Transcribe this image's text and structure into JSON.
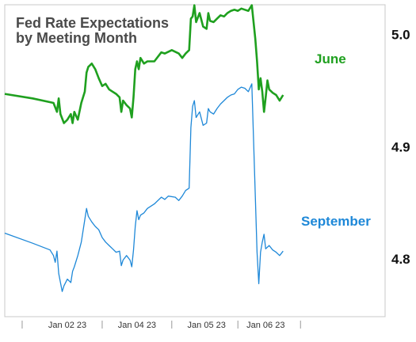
{
  "chart_data": {
    "type": "line",
    "title": "Fed Rate Expectations",
    "subtitle": "by Meeting Month",
    "xlabel": "",
    "ylabel": "",
    "y_ticks": [
      {
        "label": "4.8",
        "value": 4.8
      },
      {
        "label": "4.9",
        "value": 4.9
      },
      {
        "label": "5.0",
        "value": 5.0
      }
    ],
    "x_ticks": [
      {
        "label": "Jan 02 23",
        "t": 13
      },
      {
        "label": "Jan 04 23",
        "t": 33
      },
      {
        "label": "Jan 05 23",
        "t": 53
      },
      {
        "label": "Jan 06 23",
        "t": 70
      }
    ],
    "x_range": [
      -5,
      87
    ],
    "ylim": [
      4.75,
      5.025
    ],
    "grid": false,
    "series": [
      {
        "name": "June",
        "color": "#1fa01f",
        "points": [
          [
            -5,
            4.947
          ],
          [
            3,
            4.943
          ],
          [
            9,
            4.939
          ],
          [
            10,
            4.931
          ],
          [
            10.5,
            4.943
          ],
          [
            11,
            4.929
          ],
          [
            12,
            4.921
          ],
          [
            13,
            4.924
          ],
          [
            14,
            4.929
          ],
          [
            14.5,
            4.921
          ],
          [
            15,
            4.931
          ],
          [
            16,
            4.924
          ],
          [
            17,
            4.939
          ],
          [
            18,
            4.949
          ],
          [
            18.5,
            4.966
          ],
          [
            19,
            4.971
          ],
          [
            20,
            4.974
          ],
          [
            21,
            4.969
          ],
          [
            22,
            4.961
          ],
          [
            23,
            4.954
          ],
          [
            24,
            4.956
          ],
          [
            25,
            4.951
          ],
          [
            26,
            4.949
          ],
          [
            27,
            4.947
          ],
          [
            28,
            4.944
          ],
          [
            28.5,
            4.931
          ],
          [
            29,
            4.941
          ],
          [
            30,
            4.937
          ],
          [
            31,
            4.934
          ],
          [
            31.5,
            4.926
          ],
          [
            32,
            4.944
          ],
          [
            32.5,
            4.969
          ],
          [
            33,
            4.976
          ],
          [
            33.5,
            4.969
          ],
          [
            34,
            4.979
          ],
          [
            35,
            4.974
          ],
          [
            36,
            4.976
          ],
          [
            38,
            4.976
          ],
          [
            40,
            4.984
          ],
          [
            41,
            4.983
          ],
          [
            43,
            4.986
          ],
          [
            45,
            4.983
          ],
          [
            46,
            4.979
          ],
          [
            47,
            4.983
          ],
          [
            48,
            4.986
          ],
          [
            48.5,
            5.014
          ],
          [
            49,
            5.016
          ],
          [
            49.5,
            5.026
          ],
          [
            50,
            5.011
          ],
          [
            51,
            5.019
          ],
          [
            52,
            5.007
          ],
          [
            53,
            5.005
          ],
          [
            53.5,
            5.019
          ],
          [
            54,
            5.012
          ],
          [
            55,
            5.011
          ],
          [
            56,
            5.014
          ],
          [
            57,
            5.017
          ],
          [
            58,
            5.016
          ],
          [
            59,
            5.019
          ],
          [
            60,
            5.021
          ],
          [
            61,
            5.022
          ],
          [
            62,
            5.021
          ],
          [
            63,
            5.023
          ],
          [
            64,
            5.022
          ],
          [
            65,
            5.021
          ],
          [
            66,
            5.026
          ],
          [
            66.5,
            5.011
          ],
          [
            67,
            4.996
          ],
          [
            67.5,
            4.976
          ],
          [
            68,
            4.951
          ],
          [
            68.5,
            4.961
          ],
          [
            69,
            4.949
          ],
          [
            69.5,
            4.931
          ],
          [
            70,
            4.944
          ],
          [
            70.5,
            4.959
          ],
          [
            71,
            4.951
          ],
          [
            72,
            4.948
          ],
          [
            73,
            4.946
          ],
          [
            74,
            4.941
          ],
          [
            75,
            4.946
          ]
        ]
      },
      {
        "name": "September",
        "color": "#1e88d8",
        "points": [
          [
            -5,
            4.823
          ],
          [
            3,
            4.814
          ],
          [
            8,
            4.808
          ],
          [
            9,
            4.803
          ],
          [
            9.5,
            4.797
          ],
          [
            10,
            4.807
          ],
          [
            10.5,
            4.787
          ],
          [
            11,
            4.779
          ],
          [
            11.5,
            4.771
          ],
          [
            12,
            4.776
          ],
          [
            13,
            4.782
          ],
          [
            14,
            4.779
          ],
          [
            14.5,
            4.789
          ],
          [
            15,
            4.793
          ],
          [
            16,
            4.803
          ],
          [
            17,
            4.815
          ],
          [
            18,
            4.835
          ],
          [
            18.5,
            4.845
          ],
          [
            19,
            4.838
          ],
          [
            20,
            4.833
          ],
          [
            21,
            4.829
          ],
          [
            22,
            4.826
          ],
          [
            23,
            4.819
          ],
          [
            24,
            4.815
          ],
          [
            25,
            4.812
          ],
          [
            26,
            4.809
          ],
          [
            27,
            4.806
          ],
          [
            28,
            4.807
          ],
          [
            28.5,
            4.794
          ],
          [
            29,
            4.799
          ],
          [
            30,
            4.803
          ],
          [
            31,
            4.799
          ],
          [
            31.5,
            4.793
          ],
          [
            32,
            4.808
          ],
          [
            32.5,
            4.829
          ],
          [
            33,
            4.843
          ],
          [
            33.5,
            4.835
          ],
          [
            34,
            4.839
          ],
          [
            35,
            4.841
          ],
          [
            36,
            4.845
          ],
          [
            38,
            4.849
          ],
          [
            40,
            4.855
          ],
          [
            41,
            4.853
          ],
          [
            42,
            4.856
          ],
          [
            44,
            4.855
          ],
          [
            45,
            4.852
          ],
          [
            46,
            4.856
          ],
          [
            47,
            4.861
          ],
          [
            48,
            4.863
          ],
          [
            48.5,
            4.917
          ],
          [
            49,
            4.936
          ],
          [
            49.5,
            4.941
          ],
          [
            50,
            4.926
          ],
          [
            51,
            4.931
          ],
          [
            52,
            4.919
          ],
          [
            53,
            4.921
          ],
          [
            53.5,
            4.934
          ],
          [
            54,
            4.931
          ],
          [
            55,
            4.929
          ],
          [
            56,
            4.934
          ],
          [
            57,
            4.938
          ],
          [
            58,
            4.941
          ],
          [
            59,
            4.944
          ],
          [
            60,
            4.946
          ],
          [
            61,
            4.947
          ],
          [
            62,
            4.951
          ],
          [
            63,
            4.953
          ],
          [
            64,
            4.952
          ],
          [
            65,
            4.949
          ],
          [
            66,
            4.956
          ],
          [
            66.5,
            4.906
          ],
          [
            67,
            4.856
          ],
          [
            67.5,
            4.806
          ],
          [
            68,
            4.778
          ],
          [
            68.5,
            4.806
          ],
          [
            69,
            4.815
          ],
          [
            69.5,
            4.822
          ],
          [
            70,
            4.809
          ],
          [
            71,
            4.812
          ],
          [
            72,
            4.808
          ],
          [
            73,
            4.806
          ],
          [
            74,
            4.803
          ],
          [
            75,
            4.807
          ]
        ]
      }
    ]
  }
}
